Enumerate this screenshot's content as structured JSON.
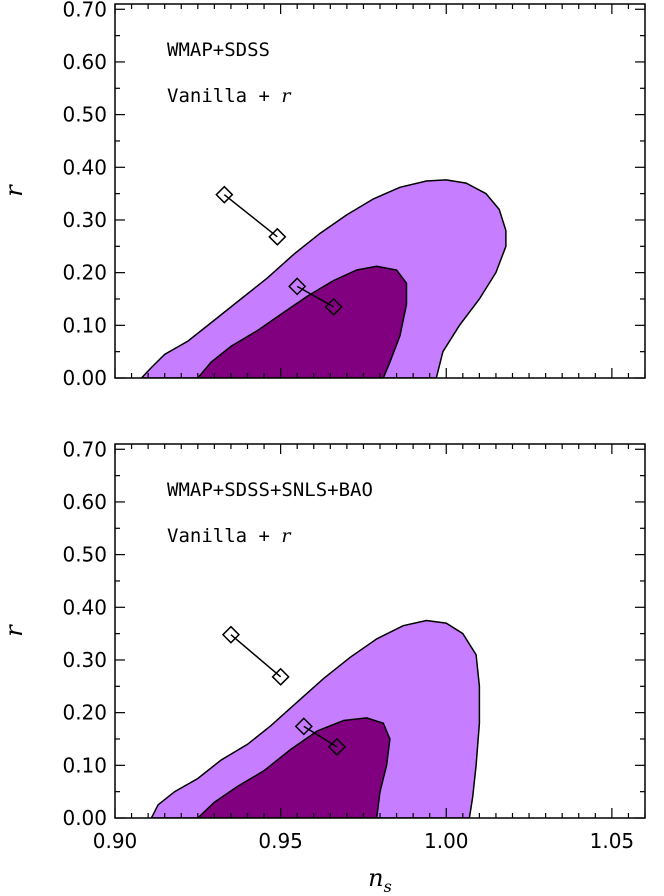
{
  "chart_data": [
    {
      "type": "contour",
      "xlabel": "",
      "ylabel": "r",
      "xlim": [
        0.9,
        1.06
      ],
      "ylim": [
        0.0,
        0.71
      ],
      "x_ticks": [
        "0.90",
        "0.95",
        "1.00",
        "1.05"
      ],
      "show_x_tick_labels": false,
      "y_ticks": [
        "0.00",
        "0.10",
        "0.20",
        "0.30",
        "0.40",
        "0.50",
        "0.60",
        "0.70"
      ],
      "annotation": {
        "line1": "WMAP+SDSS",
        "line2_prefix": "Vanilla + ",
        "line2_var": "r"
      },
      "colors": {
        "outer": "#c77dff",
        "inner": "#800080",
        "edge": "#000000"
      },
      "regions": [
        {
          "level": "outer",
          "points": [
            [
              0.908,
              0.0
            ],
            [
              0.911,
              0.02
            ],
            [
              0.915,
              0.045
            ],
            [
              0.922,
              0.07
            ],
            [
              0.93,
              0.11
            ],
            [
              0.938,
              0.15
            ],
            [
              0.946,
              0.19
            ],
            [
              0.954,
              0.235
            ],
            [
              0.962,
              0.275
            ],
            [
              0.97,
              0.31
            ],
            [
              0.978,
              0.34
            ],
            [
              0.986,
              0.362
            ],
            [
              0.994,
              0.374
            ],
            [
              1.0,
              0.376
            ],
            [
              1.006,
              0.37
            ],
            [
              1.012,
              0.35
            ],
            [
              1.016,
              0.32
            ],
            [
              1.018,
              0.28
            ],
            [
              1.018,
              0.25
            ],
            [
              1.015,
              0.2
            ],
            [
              1.01,
              0.15
            ],
            [
              1.004,
              0.1
            ],
            [
              0.999,
              0.05
            ],
            [
              0.997,
              0.0
            ]
          ]
        },
        {
          "level": "inner",
          "points": [
            [
              0.925,
              0.0
            ],
            [
              0.929,
              0.03
            ],
            [
              0.935,
              0.06
            ],
            [
              0.943,
              0.09
            ],
            [
              0.951,
              0.125
            ],
            [
              0.958,
              0.155
            ],
            [
              0.966,
              0.185
            ],
            [
              0.973,
              0.205
            ],
            [
              0.979,
              0.212
            ],
            [
              0.985,
              0.205
            ],
            [
              0.988,
              0.18
            ],
            [
              0.988,
              0.14
            ],
            [
              0.986,
              0.08
            ],
            [
              0.983,
              0.03
            ],
            [
              0.981,
              0.0
            ]
          ]
        }
      ],
      "markers": [
        {
          "x0": 0.933,
          "y0": 0.348,
          "x1": 0.949,
          "y1": 0.268
        },
        {
          "x0": 0.955,
          "y0": 0.174,
          "x1": 0.966,
          "y1": 0.135
        }
      ]
    },
    {
      "type": "contour",
      "xlabel": "n_s",
      "xlabel_main": "n",
      "xlabel_sub": "s",
      "ylabel": "r",
      "xlim": [
        0.9,
        1.06
      ],
      "ylim": [
        0.0,
        0.71
      ],
      "x_ticks": [
        "0.90",
        "0.95",
        "1.00",
        "1.05"
      ],
      "show_x_tick_labels": true,
      "y_ticks": [
        "0.00",
        "0.10",
        "0.20",
        "0.30",
        "0.40",
        "0.50",
        "0.60",
        "0.70"
      ],
      "annotation": {
        "line1": "WMAP+SDSS+SNLS+BAO",
        "line2_prefix": "Vanilla + ",
        "line2_var": "r"
      },
      "colors": {
        "outer": "#c77dff",
        "inner": "#800080",
        "edge": "#000000"
      },
      "regions": [
        {
          "level": "outer",
          "points": [
            [
              0.911,
              0.0
            ],
            [
              0.913,
              0.025
            ],
            [
              0.918,
              0.05
            ],
            [
              0.925,
              0.075
            ],
            [
              0.932,
              0.11
            ],
            [
              0.94,
              0.14
            ],
            [
              0.947,
              0.175
            ],
            [
              0.955,
              0.22
            ],
            [
              0.963,
              0.265
            ],
            [
              0.971,
              0.305
            ],
            [
              0.979,
              0.34
            ],
            [
              0.987,
              0.365
            ],
            [
              0.994,
              0.375
            ],
            [
              1.0,
              0.37
            ],
            [
              1.005,
              0.35
            ],
            [
              1.009,
              0.31
            ],
            [
              1.01,
              0.25
            ],
            [
              1.01,
              0.18
            ],
            [
              1.009,
              0.1
            ],
            [
              1.008,
              0.04
            ],
            [
              1.007,
              0.0
            ]
          ]
        },
        {
          "level": "inner",
          "points": [
            [
              0.925,
              0.0
            ],
            [
              0.93,
              0.03
            ],
            [
              0.937,
              0.06
            ],
            [
              0.945,
              0.09
            ],
            [
              0.953,
              0.13
            ],
            [
              0.961,
              0.165
            ],
            [
              0.969,
              0.185
            ],
            [
              0.976,
              0.19
            ],
            [
              0.981,
              0.18
            ],
            [
              0.983,
              0.15
            ],
            [
              0.982,
              0.1
            ],
            [
              0.98,
              0.05
            ],
            [
              0.979,
              0.0
            ]
          ]
        }
      ],
      "markers": [
        {
          "x0": 0.935,
          "y0": 0.348,
          "x1": 0.95,
          "y1": 0.268
        },
        {
          "x0": 0.957,
          "y0": 0.174,
          "x1": 0.967,
          "y1": 0.135
        }
      ]
    }
  ]
}
